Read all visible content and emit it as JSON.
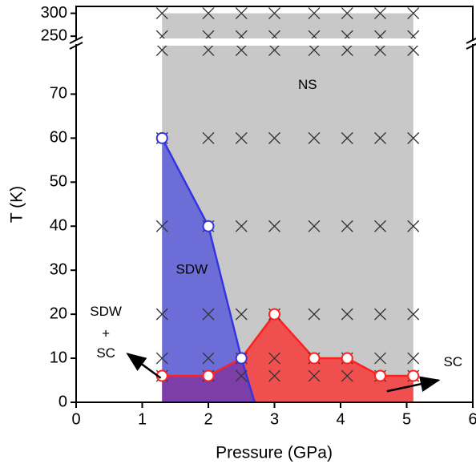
{
  "chart_data": {
    "type": "phase",
    "x_label": "Pressure (GPa)",
    "y_label": "T (K)",
    "xlim": [
      0,
      6
    ],
    "xticks": [
      0,
      1,
      2,
      3,
      4,
      5,
      6
    ],
    "ylim": [
      0,
      81
    ],
    "yticks": [
      0,
      10,
      20,
      30,
      40,
      50,
      60,
      70
    ],
    "upper_ylim": [
      245,
      315
    ],
    "upper_yticks": [
      250,
      300
    ],
    "ns_range": [
      1.3,
      5.1
    ],
    "ns_color": "#c8c8c8",
    "series": [
      {
        "name": "SDW",
        "color": "#3535e0",
        "x": [
          1.3,
          2,
          2.5,
          2.7
        ],
        "values": [
          60,
          40,
          10,
          0
        ]
      },
      {
        "name": "SC",
        "color": "#ff2020",
        "x": [
          1.3,
          2,
          2.5,
          3,
          3.6,
          4.1,
          4.6,
          5.1
        ],
        "values": [
          6,
          6,
          10,
          20,
          10,
          10,
          6,
          6
        ]
      }
    ],
    "measured": {
      "x": [
        1.3,
        2,
        2.5,
        3,
        3.6,
        4.1,
        4.6,
        5.1
      ],
      "temps": [
        6,
        10,
        20,
        40,
        60,
        80,
        250,
        300
      ]
    },
    "annotations": [
      "NS",
      "SDW",
      "SDW",
      "+",
      "SC",
      "SC"
    ]
  }
}
